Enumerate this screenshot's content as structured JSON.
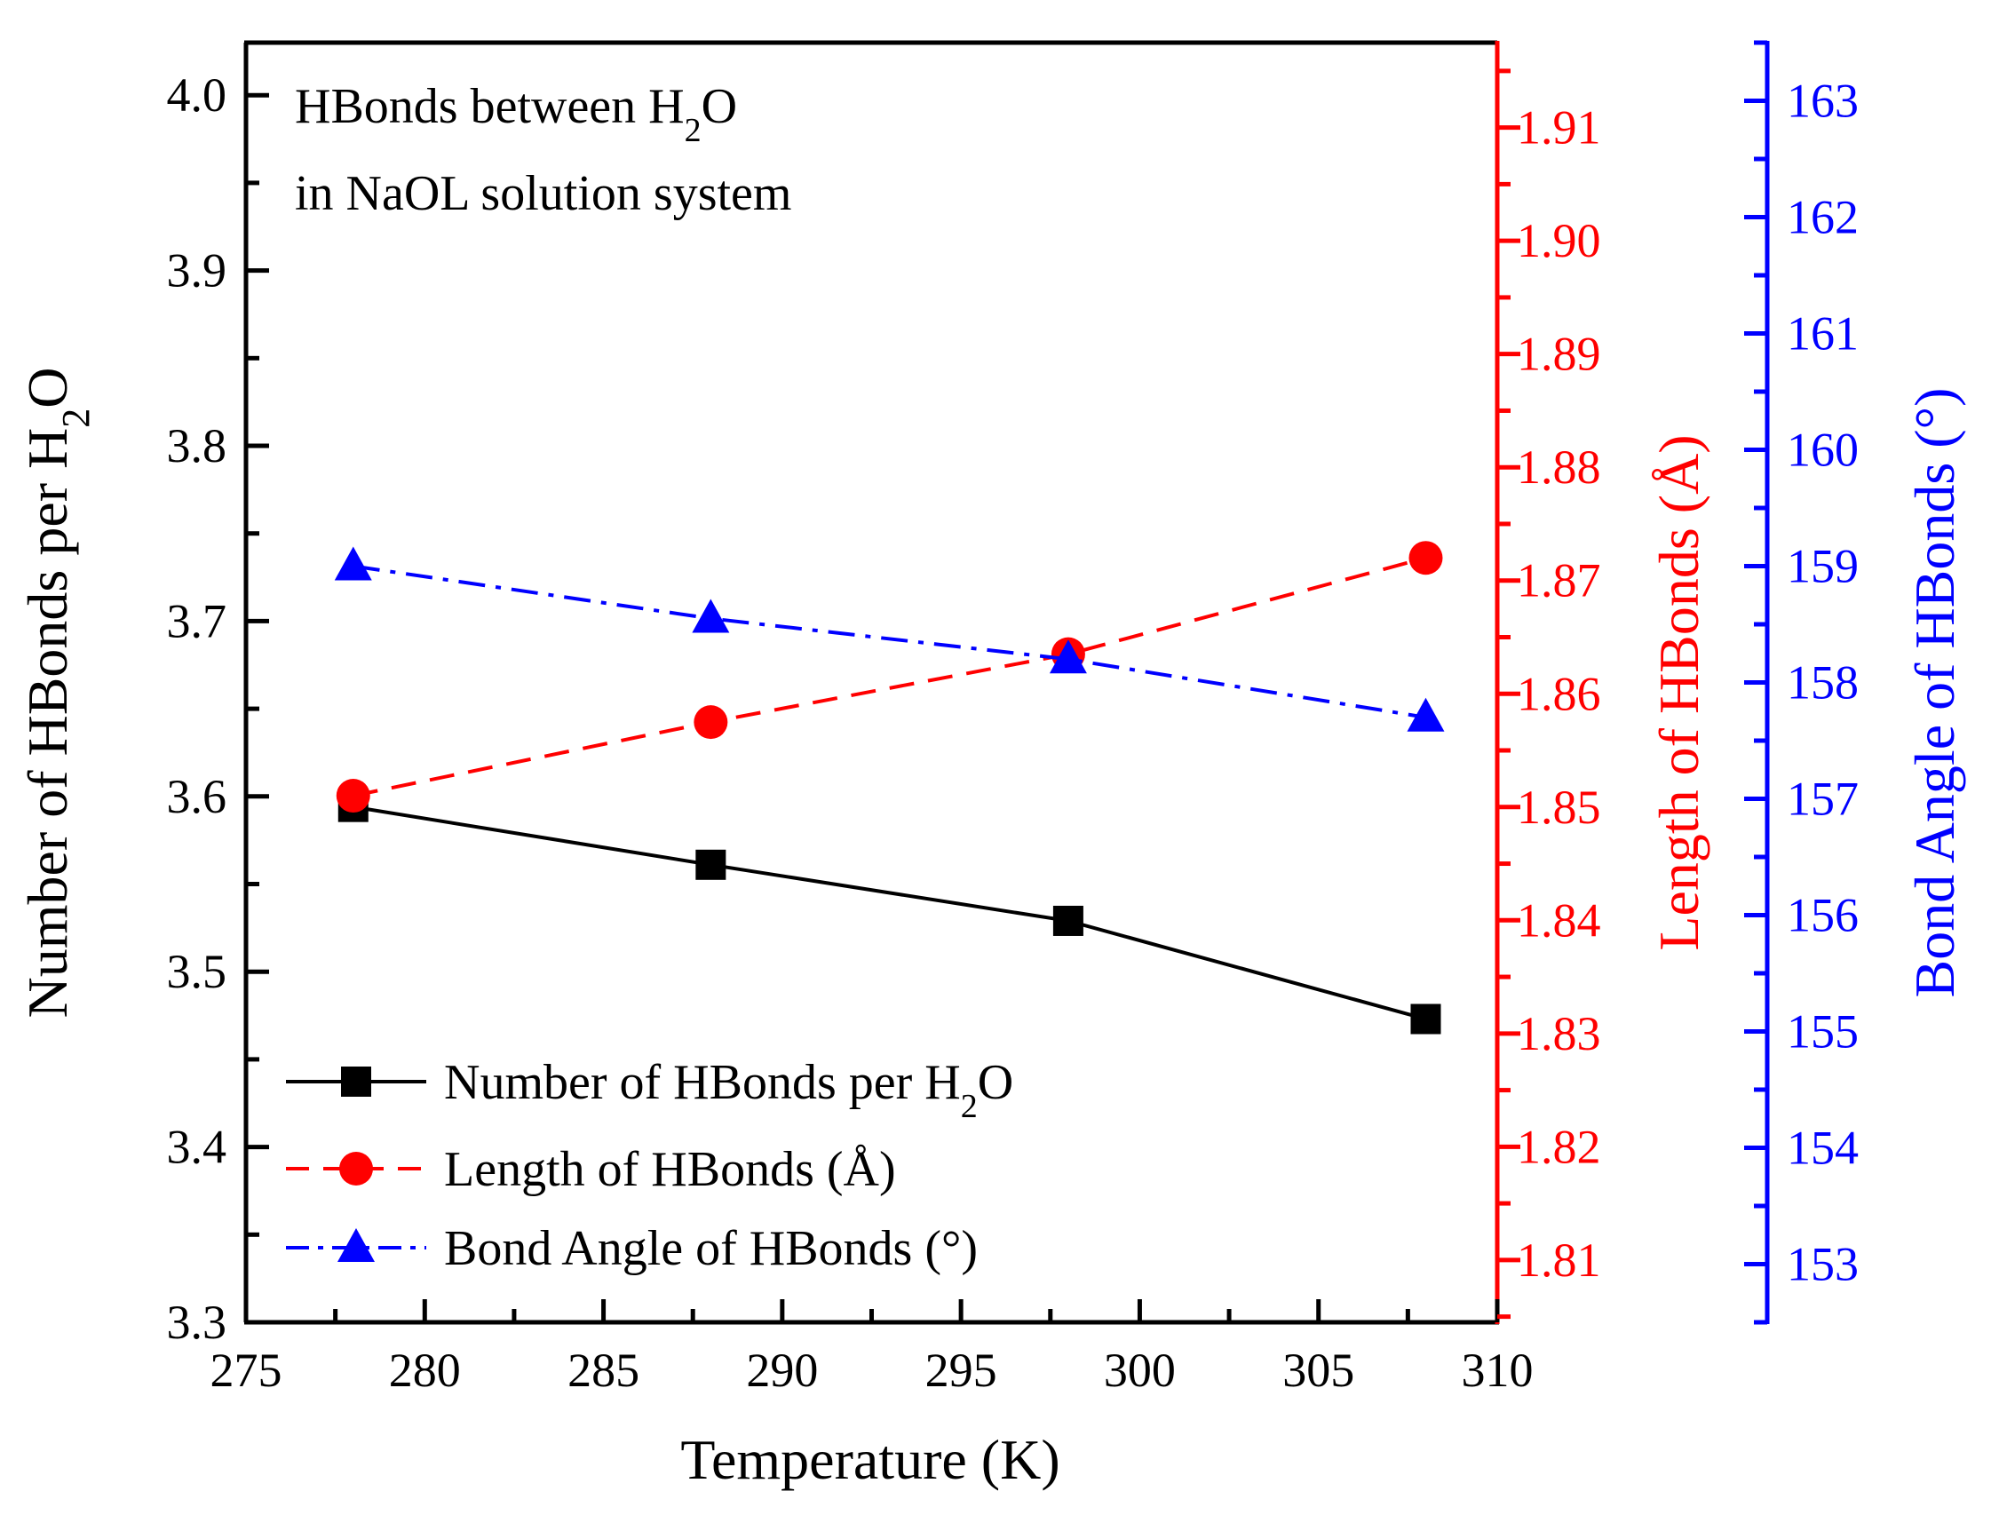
{
  "chart_data": {
    "type": "line",
    "annotation": {
      "line1_prefix": "HBonds between H",
      "line1_sub": "2",
      "line1_suffix": "O",
      "line2": "in NaOL solution system"
    },
    "x": [
      278,
      288,
      298,
      308
    ],
    "x_axis": {
      "label": "Temperature (K)",
      "range": [
        275,
        310
      ],
      "ticks": [
        "275",
        "280",
        "285",
        "290",
        "295",
        "300",
        "305",
        "310"
      ]
    },
    "y_left": {
      "label_prefix": "Number of HBonds per H",
      "label_sub": "2",
      "label_suffix": "O",
      "range": [
        3.3,
        4.03
      ],
      "ticks": [
        "3.3",
        "3.4",
        "3.5",
        "3.6",
        "3.7",
        "3.8",
        "3.9",
        "4.0"
      ],
      "color": "#000000"
    },
    "y_right1": {
      "label": "Length of HBonds (Å)",
      "range": [
        1.8045,
        1.9175
      ],
      "ticks": [
        "1.81",
        "1.82",
        "1.83",
        "1.84",
        "1.85",
        "1.86",
        "1.87",
        "1.88",
        "1.89",
        "1.90",
        "1.91"
      ],
      "color": "#ff0000"
    },
    "y_right2": {
      "label": "Bond Angle of HBonds (°)",
      "range": [
        152.5,
        163.5
      ],
      "ticks": [
        "153",
        "154",
        "155",
        "156",
        "157",
        "158",
        "159",
        "160",
        "161",
        "162",
        "163"
      ],
      "color": "#0000ff"
    },
    "series": [
      {
        "name": "Number of HBonds per H2O",
        "legend_prefix": "Number of HBonds per H",
        "legend_sub": "2",
        "legend_suffix": "O",
        "axis": "left",
        "marker": "square",
        "line": "solid",
        "color": "#000000",
        "values": [
          3.594,
          3.561,
          3.529,
          3.473
        ]
      },
      {
        "name": "Length of HBonds (Å)",
        "legend_prefix": "Length of HBonds (Å)",
        "legend_sub": "",
        "legend_suffix": "",
        "axis": "right1",
        "marker": "circle",
        "line": "dash",
        "color": "#ff0000",
        "values": [
          1.851,
          1.8575,
          1.8635,
          1.872
        ]
      },
      {
        "name": "Bond Angle of HBonds (°)",
        "legend_prefix": "Bond Angle of HBonds (°)",
        "legend_sub": "",
        "legend_suffix": "",
        "axis": "right2",
        "marker": "triangle",
        "line": "dashdot",
        "color": "#0000ff",
        "values": [
          159.0,
          158.55,
          158.2,
          157.7
        ]
      }
    ],
    "legend_position": "bottom-left"
  }
}
